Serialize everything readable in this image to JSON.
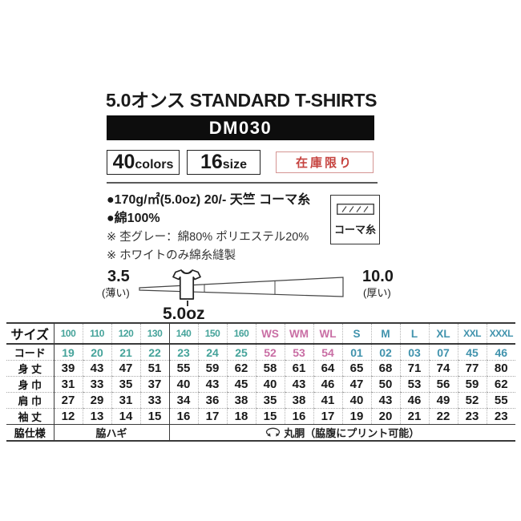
{
  "header": {
    "title": "5.0オンス STANDARD T-SHIRTS",
    "product_code": "DM030",
    "colors_badge": {
      "value": "40",
      "unit": "colors"
    },
    "size_badge": {
      "value": "16",
      "unit": "size"
    },
    "stock_badge": "在庫限り"
  },
  "specs": {
    "bullet_lines": [
      "●170g/㎡(5.0oz) 20/- 天竺  コーマ糸",
      "●綿100%"
    ],
    "note_lines": [
      "※ 杢グレー：綿80% ポリエステル20%",
      "※ ホワイトのみ綿糸縫製"
    ],
    "yarn_box_label": "コーマ糸"
  },
  "thickness_scale": {
    "min_value": "3.5",
    "min_label": "(薄い)",
    "max_value": "10.0",
    "max_label": "(厚い)",
    "marker_label": "5.0oz"
  },
  "size_table": {
    "corner_label": "サイズ",
    "sizes": [
      "100",
      "110",
      "120",
      "130",
      "140",
      "150",
      "160",
      "WS",
      "WM",
      "WL",
      "S",
      "M",
      "L",
      "XL",
      "XXL",
      "XXXL"
    ],
    "groups": [
      "kids",
      "kids",
      "kids",
      "kids",
      "kids",
      "kids",
      "kids",
      "womens",
      "womens",
      "womens",
      "adult",
      "adult",
      "adult",
      "adult",
      "adult",
      "adult"
    ],
    "measure_rows": [
      {
        "key": "code",
        "label": "コード",
        "styled": true,
        "values": [
          "19",
          "20",
          "21",
          "22",
          "23",
          "24",
          "25",
          "52",
          "53",
          "54",
          "01",
          "02",
          "03",
          "07",
          "45",
          "46"
        ]
      },
      {
        "key": "body_length",
        "label": "身 丈",
        "styled": false,
        "values": [
          "39",
          "43",
          "47",
          "51",
          "55",
          "59",
          "62",
          "58",
          "61",
          "64",
          "65",
          "68",
          "71",
          "74",
          "77",
          "80"
        ]
      },
      {
        "key": "body_width",
        "label": "身 巾",
        "styled": false,
        "values": [
          "31",
          "33",
          "35",
          "37",
          "40",
          "43",
          "45",
          "40",
          "43",
          "46",
          "47",
          "50",
          "53",
          "56",
          "59",
          "62"
        ]
      },
      {
        "key": "shoulder_width",
        "label": "肩 巾",
        "styled": false,
        "values": [
          "27",
          "29",
          "31",
          "33",
          "34",
          "36",
          "38",
          "35",
          "38",
          "41",
          "40",
          "43",
          "46",
          "49",
          "52",
          "55"
        ]
      },
      {
        "key": "sleeve_length",
        "label": "袖 丈",
        "styled": false,
        "values": [
          "12",
          "13",
          "14",
          "15",
          "16",
          "17",
          "18",
          "15",
          "16",
          "17",
          "19",
          "20",
          "21",
          "22",
          "23",
          "23"
        ]
      }
    ],
    "side_row": {
      "label": "脇仕様",
      "left_span": "脇ハギ",
      "right_span": "丸胴（脇腹にプリント可能）"
    }
  },
  "colors": {
    "kids_accent": "#45a39a",
    "womens_accent": "#c96ea4",
    "adult_accent": "#4193ad",
    "stock_red": "#c64440",
    "banner_black": "#0d0d0d"
  }
}
